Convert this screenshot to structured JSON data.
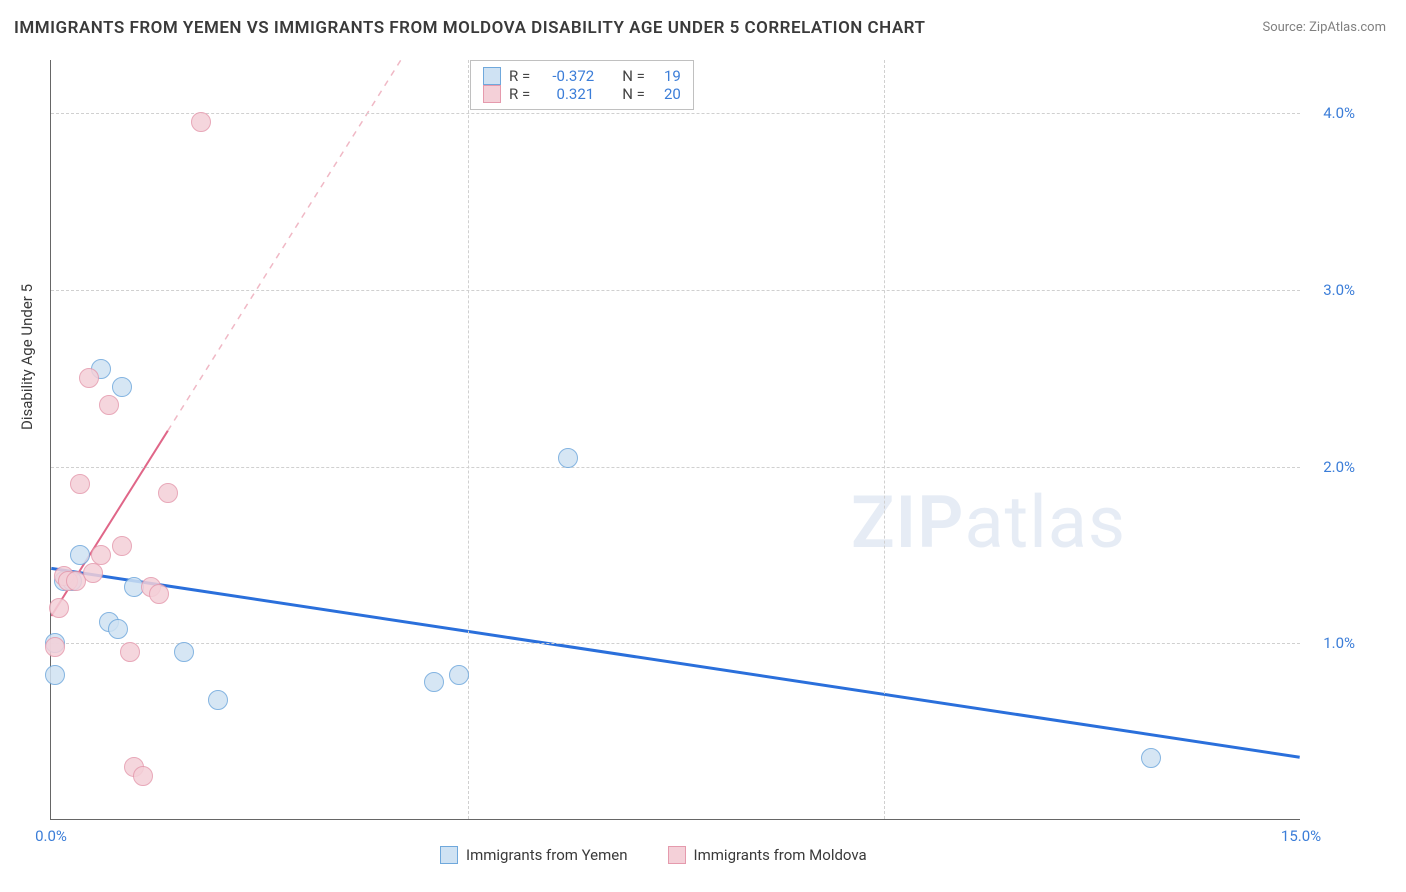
{
  "title": "IMMIGRANTS FROM YEMEN VS IMMIGRANTS FROM MOLDOVA DISABILITY AGE UNDER 5 CORRELATION CHART",
  "source": "Source: ZipAtlas.com",
  "ylabel": "Disability Age Under 5",
  "watermark": {
    "bold": "ZIP",
    "light": "atlas"
  },
  "chart": {
    "type": "scatter",
    "xlim": [
      0,
      15
    ],
    "ylim": [
      0,
      4.3
    ],
    "xticks": [
      0,
      5,
      10,
      15
    ],
    "xtick_labels": [
      "0.0%",
      "",
      "",
      "15.0%"
    ],
    "yticks": [
      1,
      2,
      3,
      4
    ],
    "ytick_labels": [
      "1.0%",
      "2.0%",
      "3.0%",
      "4.0%"
    ],
    "grid_color": "#d0d0d0",
    "background_color": "#ffffff",
    "series": [
      {
        "name": "Immigrants from Yemen",
        "color_fill": "#cfe2f3",
        "color_stroke": "#6fa8dc",
        "marker_radius": 10,
        "correlation_R": "-0.372",
        "correlation_N": "19",
        "trend": {
          "x1": 0,
          "y1": 1.42,
          "x2": 15,
          "y2": 0.35,
          "color": "#2a6fdb",
          "width": 3,
          "dash": false
        },
        "points": [
          {
            "x": 0.05,
            "y": 0.82
          },
          {
            "x": 0.05,
            "y": 1.0
          },
          {
            "x": 0.15,
            "y": 1.35
          },
          {
            "x": 0.25,
            "y": 1.35
          },
          {
            "x": 0.35,
            "y": 1.5
          },
          {
            "x": 0.6,
            "y": 2.55
          },
          {
            "x": 0.7,
            "y": 1.12
          },
          {
            "x": 0.8,
            "y": 1.08
          },
          {
            "x": 0.85,
            "y": 2.45
          },
          {
            "x": 1.0,
            "y": 1.32
          },
          {
            "x": 1.6,
            "y": 0.95
          },
          {
            "x": 2.0,
            "y": 0.68
          },
          {
            "x": 4.6,
            "y": 0.78
          },
          {
            "x": 4.9,
            "y": 0.82
          },
          {
            "x": 6.2,
            "y": 2.05
          },
          {
            "x": 13.2,
            "y": 0.35
          }
        ]
      },
      {
        "name": "Immigrants from Moldova",
        "color_fill": "#f4d0d8",
        "color_stroke": "#e59aad",
        "marker_radius": 10,
        "correlation_R": "0.321",
        "correlation_N": "20",
        "trend": {
          "x1": 0,
          "y1": 1.15,
          "x2": 1.4,
          "y2": 2.2,
          "color": "#e06688",
          "width": 2,
          "dash": false
        },
        "trend_dash": {
          "x1": 1.4,
          "y1": 2.2,
          "x2": 4.8,
          "y2": 4.75,
          "color": "#f0b8c5",
          "width": 1.5,
          "dash": true
        },
        "points": [
          {
            "x": 0.05,
            "y": 0.98
          },
          {
            "x": 0.1,
            "y": 1.2
          },
          {
            "x": 0.15,
            "y": 1.38
          },
          {
            "x": 0.2,
            "y": 1.35
          },
          {
            "x": 0.3,
            "y": 1.35
          },
          {
            "x": 0.35,
            "y": 1.9
          },
          {
            "x": 0.45,
            "y": 2.5
          },
          {
            "x": 0.5,
            "y": 1.4
          },
          {
            "x": 0.6,
            "y": 1.5
          },
          {
            "x": 0.7,
            "y": 2.35
          },
          {
            "x": 0.85,
            "y": 1.55
          },
          {
            "x": 0.95,
            "y": 0.95
          },
          {
            "x": 1.0,
            "y": 0.3
          },
          {
            "x": 1.1,
            "y": 0.25
          },
          {
            "x": 1.2,
            "y": 1.32
          },
          {
            "x": 1.3,
            "y": 1.28
          },
          {
            "x": 1.4,
            "y": 1.85
          },
          {
            "x": 1.8,
            "y": 3.95
          }
        ]
      }
    ]
  },
  "legend_box": {
    "rows": [
      {
        "swatch_fill": "#cfe2f3",
        "swatch_stroke": "#6fa8dc",
        "R_label": "R =",
        "R_val": "-0.372",
        "N_label": "N =",
        "N_val": "19"
      },
      {
        "swatch_fill": "#f4d0d8",
        "swatch_stroke": "#e59aad",
        "R_label": "R =",
        "R_val": "0.321",
        "N_label": "N =",
        "N_val": "20"
      }
    ]
  },
  "legend_bottom": [
    {
      "swatch_fill": "#cfe2f3",
      "swatch_stroke": "#6fa8dc",
      "label": "Immigrants from Yemen"
    },
    {
      "swatch_fill": "#f4d0d8",
      "swatch_stroke": "#e59aad",
      "label": "Immigrants from Moldova"
    }
  ]
}
